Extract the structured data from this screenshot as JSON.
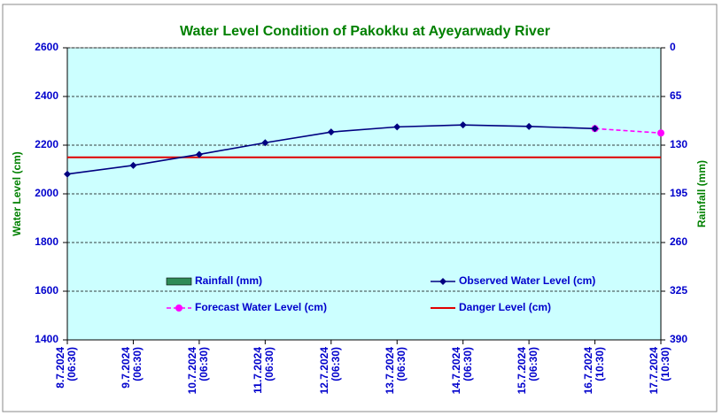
{
  "chart_data": {
    "type": "line",
    "title": "Water Level Condition of Pakokku at Ayeyarwady River",
    "ylabel": "Water Level (cm)",
    "y2label": "Rainfall (mm)",
    "categories": [
      "8.7.2024\n(06:30)",
      "9.7.2024\n(06:30)",
      "10.7.2024\n(06:30)",
      "11.7.2024\n(06:30)",
      "12.7.2024\n(06:30)",
      "13.7.2024\n(06:30)",
      "14.7.2024\n(06:30)",
      "15.7.2024\n(06:30)",
      "16.7.2024\n(10:30)",
      "17.7.2024\n(10:30)"
    ],
    "ylim": [
      1400,
      2600
    ],
    "yticks": [
      1400,
      1600,
      1800,
      2000,
      2200,
      2400,
      2600
    ],
    "y2lim": [
      390,
      0
    ],
    "y2ticks": [
      0,
      65,
      130,
      195,
      260,
      325,
      390
    ],
    "grid": true,
    "series": [
      {
        "name": "Rainfall (mm)",
        "color": "#2e8b57",
        "axis": "y2",
        "values": [
          null,
          null,
          null,
          null,
          null,
          null,
          null,
          null,
          null,
          null
        ]
      },
      {
        "name": "Observed Water Level (cm)",
        "color": "#000080",
        "values": [
          2081,
          2117,
          2162,
          2210,
          2254,
          2275,
          2283,
          2277,
          2268,
          null
        ]
      },
      {
        "name": "Forecast Water Level (cm)",
        "color": "#ff00ff",
        "values": [
          null,
          null,
          null,
          null,
          null,
          null,
          null,
          null,
          2268,
          2250
        ]
      },
      {
        "name": "Danger Level (cm)",
        "color": "#e00000",
        "value": 2150
      }
    ]
  }
}
